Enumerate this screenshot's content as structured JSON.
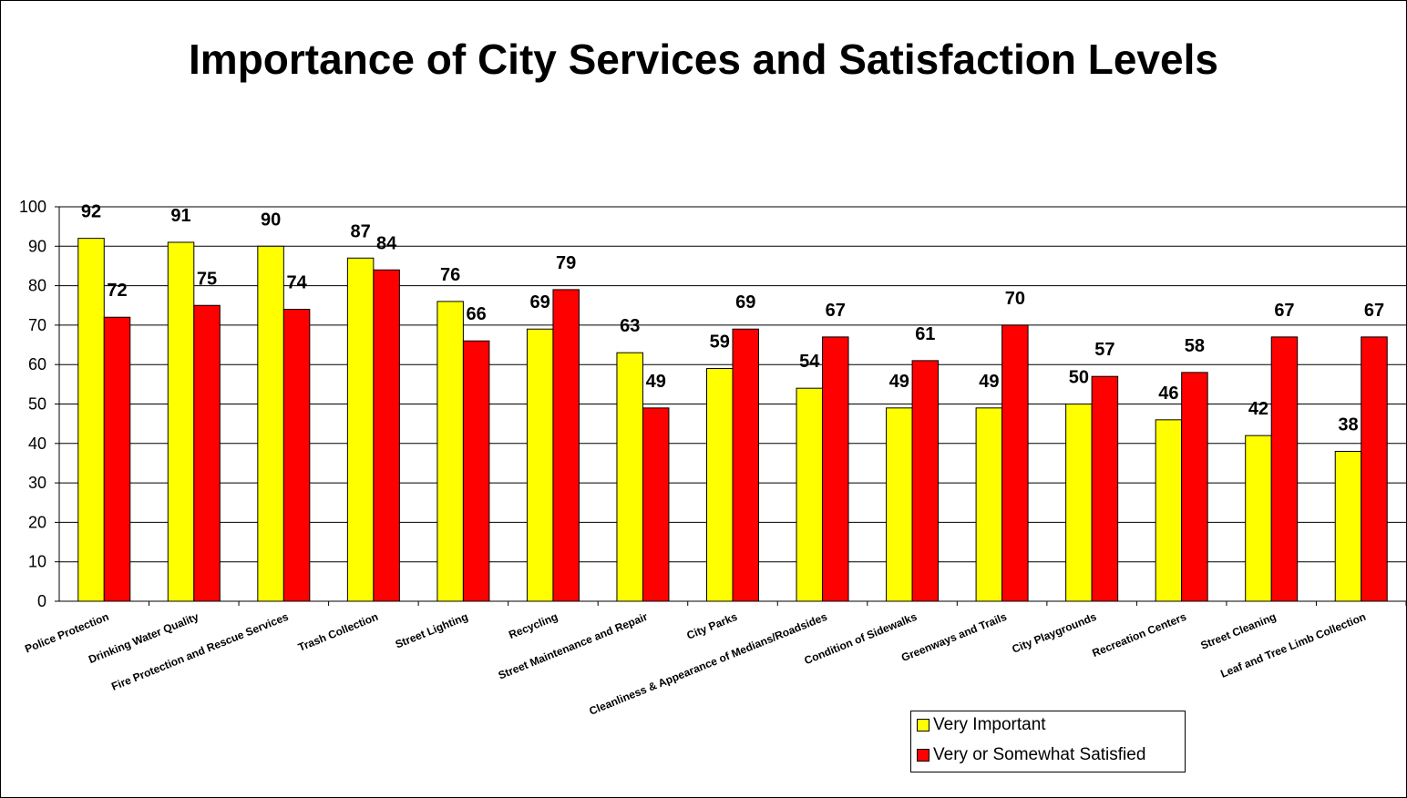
{
  "title": "Importance of City Services and Satisfaction Levels",
  "chart_data": {
    "type": "bar",
    "title": "Importance of City Services and Satisfaction Levels",
    "xlabel": "",
    "ylabel": "",
    "ylim": [
      0,
      100
    ],
    "yticks": [
      0,
      10,
      20,
      30,
      40,
      50,
      60,
      70,
      80,
      90,
      100
    ],
    "grid": true,
    "legend_position": "bottom-right",
    "categories": [
      "Police Protection",
      "Drinking Water Quality",
      "Fire Protection and Rescue Services",
      "Trash Collection",
      "Street Lighting",
      "Recycling",
      "Street Maintenance and Repair",
      "City Parks",
      "Cleanliness & Appearance of Medians/Roadsides",
      "Condition of Sidewalks",
      "Greenways and Trails",
      "City Playgrounds",
      "Recreation Centers",
      "Street Cleaning",
      "Leaf and Tree Limb Collection"
    ],
    "series": [
      {
        "name": "Very Important",
        "color": "#FFFF00",
        "values": [
          92,
          91,
          90,
          87,
          76,
          69,
          63,
          59,
          54,
          49,
          49,
          50,
          46,
          42,
          38
        ]
      },
      {
        "name": "Very or Somewhat Satisfied",
        "color": "#FF0000",
        "values": [
          72,
          75,
          74,
          84,
          66,
          79,
          49,
          69,
          67,
          61,
          70,
          57,
          58,
          67,
          67
        ]
      }
    ]
  }
}
